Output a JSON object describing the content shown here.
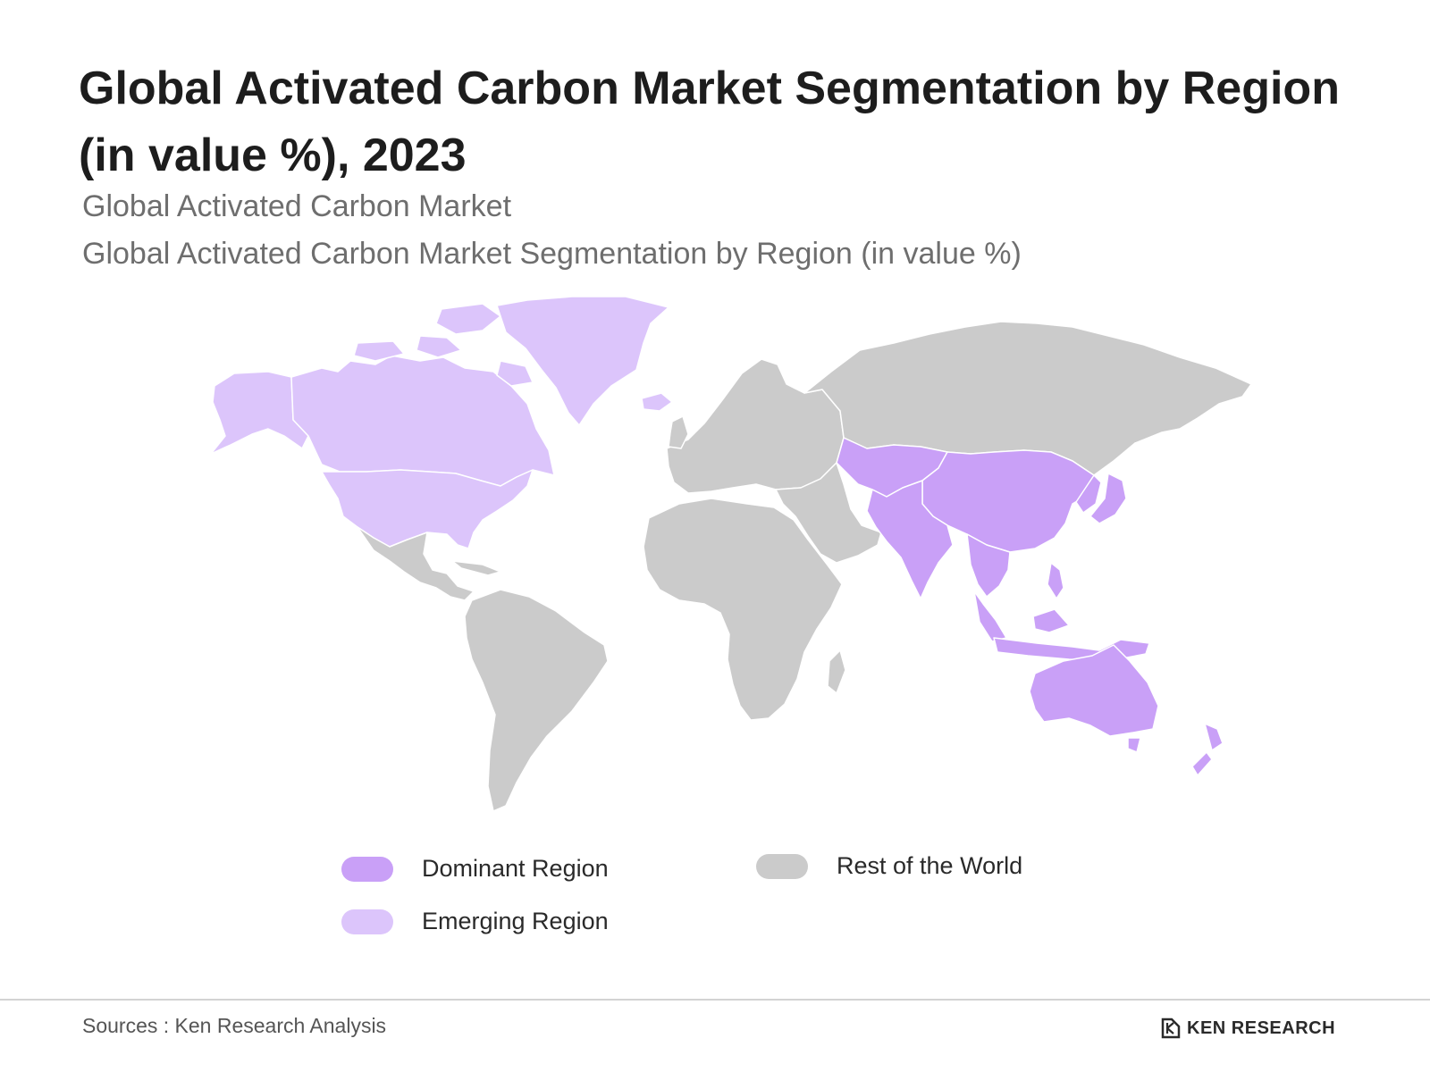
{
  "title": "Global Activated Carbon Market Segmentation by Region (in value %), 2023",
  "subtitles": [
    "Global Activated Carbon Market",
    "Global Activated Carbon Market Segmentation by Region (in value %)"
  ],
  "colors": {
    "dominant": "#c9a0f7",
    "emerging": "#dcc5fb",
    "rest": "#cbcbcb",
    "border": "#ffffff"
  },
  "legend": [
    {
      "label": "Dominant Region",
      "color": "#c9a0f7"
    },
    {
      "label": "Emerging Region",
      "color": "#dcc5fb"
    },
    {
      "label": "Rest of the World",
      "color": "#cbcbcb"
    }
  ],
  "source": "Sources : Ken Research Analysis",
  "brand": "KEN RESEARCH",
  "icons": [
    "ken-research-logo-icon"
  ]
}
